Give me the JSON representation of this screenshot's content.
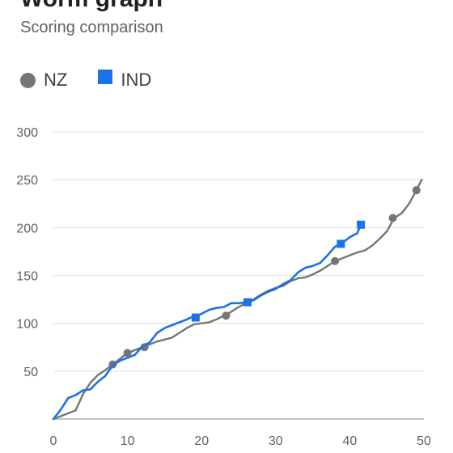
{
  "header": {
    "title": "Worm graph",
    "subtitle": "Scoring comparison"
  },
  "colors": {
    "nz": "#757575",
    "ind": "#1a73e8",
    "grid": "#e0e0e0",
    "axis": "#9e9e9e"
  },
  "chart_data": {
    "type": "line",
    "title": "Worm graph",
    "subtitle": "Scoring comparison",
    "xlabel": "",
    "ylabel": "",
    "xlim": [
      0,
      50
    ],
    "ylim": [
      0,
      300
    ],
    "x_ticks": [
      0,
      10,
      20,
      30,
      40,
      50
    ],
    "y_ticks": [
      50,
      100,
      150,
      200,
      250,
      300
    ],
    "grid": true,
    "legend": "top-left",
    "series": [
      {
        "name": "NZ",
        "marker": "circle",
        "points": [
          [
            0,
            0
          ],
          [
            1,
            3
          ],
          [
            2,
            6
          ],
          [
            3,
            9
          ],
          [
            4,
            26
          ],
          [
            5,
            38
          ],
          [
            6,
            46
          ],
          [
            7,
            51
          ],
          [
            8,
            57
          ],
          [
            9,
            63
          ],
          [
            10,
            69
          ],
          [
            11,
            72
          ],
          [
            12,
            75
          ],
          [
            13,
            78
          ],
          [
            14,
            81
          ],
          [
            15,
            83
          ],
          [
            16,
            85
          ],
          [
            17,
            90
          ],
          [
            18,
            95
          ],
          [
            19,
            99
          ],
          [
            20,
            100
          ],
          [
            21,
            101
          ],
          [
            22,
            104
          ],
          [
            23,
            108
          ],
          [
            24,
            112
          ],
          [
            25,
            117
          ],
          [
            26,
            121
          ],
          [
            27,
            125
          ],
          [
            28,
            130
          ],
          [
            29,
            134
          ],
          [
            30,
            137
          ],
          [
            31,
            139
          ],
          [
            32,
            144
          ],
          [
            33,
            147
          ],
          [
            34,
            148
          ],
          [
            35,
            151
          ],
          [
            36,
            155
          ],
          [
            37,
            160
          ],
          [
            38,
            165
          ],
          [
            39,
            168
          ],
          [
            40,
            171
          ],
          [
            41,
            174
          ],
          [
            42,
            176
          ],
          [
            43,
            181
          ],
          [
            44,
            188
          ],
          [
            45,
            196
          ],
          [
            46,
            210
          ],
          [
            47,
            215
          ],
          [
            48,
            225
          ],
          [
            49,
            239
          ],
          [
            49.7,
            250
          ]
        ],
        "wickets": [
          [
            8,
            57
          ],
          [
            10,
            69
          ],
          [
            12.3,
            75
          ],
          [
            23.3,
            108
          ],
          [
            38,
            165
          ],
          [
            45.8,
            210
          ],
          [
            49,
            239
          ]
        ]
      },
      {
        "name": "IND",
        "marker": "square",
        "points": [
          [
            0,
            0
          ],
          [
            1,
            10
          ],
          [
            2,
            22
          ],
          [
            3,
            25
          ],
          [
            4,
            30
          ],
          [
            5,
            31
          ],
          [
            6,
            39
          ],
          [
            7,
            45
          ],
          [
            8,
            56
          ],
          [
            9,
            61
          ],
          [
            10,
            64
          ],
          [
            11,
            67
          ],
          [
            12,
            76
          ],
          [
            13,
            80
          ],
          [
            14,
            90
          ],
          [
            15,
            95
          ],
          [
            16,
            98
          ],
          [
            17,
            101
          ],
          [
            18,
            104
          ],
          [
            18.5,
            106
          ],
          [
            19,
            106
          ],
          [
            20,
            110
          ],
          [
            21,
            114
          ],
          [
            22,
            116
          ],
          [
            23,
            117
          ],
          [
            24,
            121
          ],
          [
            25,
            121
          ],
          [
            26,
            122
          ],
          [
            27,
            124
          ],
          [
            28,
            129
          ],
          [
            29,
            133
          ],
          [
            30,
            136
          ],
          [
            31,
            141
          ],
          [
            32,
            145
          ],
          [
            33,
            153
          ],
          [
            34,
            158
          ],
          [
            35,
            160
          ],
          [
            36,
            163
          ],
          [
            37,
            171
          ],
          [
            38,
            180
          ],
          [
            39,
            184
          ],
          [
            40,
            190
          ],
          [
            41,
            194
          ],
          [
            41.5,
            203
          ]
        ],
        "wickets": [
          [
            19.2,
            106
          ],
          [
            26.2,
            122
          ],
          [
            38.8,
            183
          ],
          [
            41.5,
            203
          ]
        ]
      }
    ]
  }
}
